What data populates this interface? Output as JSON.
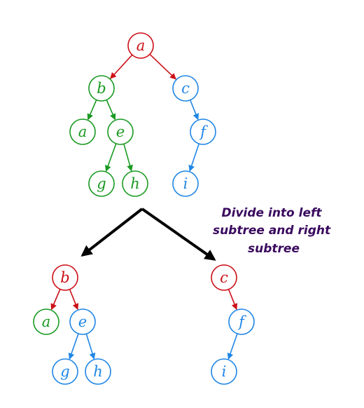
{
  "colors": {
    "red": "#cc1018",
    "green": "#1a9a22",
    "blue": "#1f86e6",
    "arrow": "#000000",
    "caption": "#3a0a5e"
  },
  "caption": {
    "lines": [
      "Divide into left",
      "subtree and right",
      "subtree"
    ]
  },
  "tree_original": {
    "nodes": [
      {
        "id": "a",
        "label": "a",
        "color": "red"
      },
      {
        "id": "b",
        "label": "b",
        "color": "green"
      },
      {
        "id": "c",
        "label": "c",
        "color": "blue"
      },
      {
        "id": "a2",
        "label": "a",
        "color": "green"
      },
      {
        "id": "e",
        "label": "e",
        "color": "green"
      },
      {
        "id": "f",
        "label": "f",
        "color": "blue"
      },
      {
        "id": "g",
        "label": "g",
        "color": "green"
      },
      {
        "id": "h",
        "label": "h",
        "color": "green"
      },
      {
        "id": "i",
        "label": "i",
        "color": "blue"
      }
    ],
    "edges": [
      {
        "from": "a",
        "to": "b",
        "color": "red"
      },
      {
        "from": "a",
        "to": "c",
        "color": "red"
      },
      {
        "from": "b",
        "to": "a2",
        "color": "green"
      },
      {
        "from": "b",
        "to": "e",
        "color": "green"
      },
      {
        "from": "e",
        "to": "g",
        "color": "green"
      },
      {
        "from": "e",
        "to": "h",
        "color": "green"
      },
      {
        "from": "c",
        "to": "f",
        "color": "blue"
      },
      {
        "from": "f",
        "to": "i",
        "color": "blue"
      }
    ]
  },
  "tree_left": {
    "nodes": [
      {
        "id": "b",
        "label": "b",
        "color": "red"
      },
      {
        "id": "a",
        "label": "a",
        "color": "green"
      },
      {
        "id": "e",
        "label": "e",
        "color": "blue"
      },
      {
        "id": "g",
        "label": "g",
        "color": "blue"
      },
      {
        "id": "h",
        "label": "h",
        "color": "blue"
      }
    ],
    "edges": [
      {
        "from": "b",
        "to": "a",
        "color": "red"
      },
      {
        "from": "b",
        "to": "e",
        "color": "red"
      },
      {
        "from": "e",
        "to": "g",
        "color": "blue"
      },
      {
        "from": "e",
        "to": "h",
        "color": "blue"
      }
    ]
  },
  "tree_right": {
    "nodes": [
      {
        "id": "c",
        "label": "c",
        "color": "red"
      },
      {
        "id": "f",
        "label": "f",
        "color": "blue"
      },
      {
        "id": "i",
        "label": "i",
        "color": "blue"
      }
    ],
    "edges": [
      {
        "from": "c",
        "to": "f",
        "color": "red"
      },
      {
        "from": "f",
        "to": "i",
        "color": "blue"
      }
    ]
  }
}
